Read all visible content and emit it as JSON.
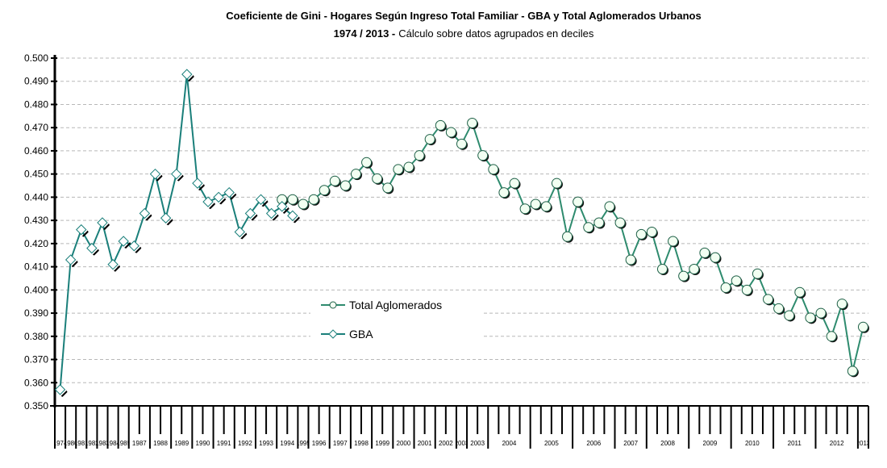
{
  "chart_data": {
    "type": "line",
    "title": "Coeficiente de Gini - Hogares Según Ingreso Total Familiar - GBA y Total Aglomerados Urbanos",
    "subtitle_bold": "1974 / 2013 -",
    "subtitle": "Cálculo sobre datos agrupados en deciles",
    "ylim": [
      0.35,
      0.5
    ],
    "yticks": [
      "0.350",
      "0.360",
      "0.370",
      "0.380",
      "0.390",
      "0.400",
      "0.410",
      "0.420",
      "0.430",
      "0.440",
      "0.450",
      "0.460",
      "0.470",
      "0.480",
      "0.490",
      "0.500"
    ],
    "grid": true,
    "legend_placement": "center",
    "groups": [
      {
        "year": "1974",
        "periods": [
          "Octubre"
        ]
      },
      {
        "year": "1980",
        "periods": [
          "Octubre"
        ]
      },
      {
        "year": "1981",
        "periods": [
          "Octubre"
        ]
      },
      {
        "year": "1982",
        "periods": [
          "Octubre"
        ]
      },
      {
        "year": "1983",
        "periods": [
          "Octubre"
        ]
      },
      {
        "year": "1984",
        "periods": [
          "Octubre"
        ]
      },
      {
        "year": "1985",
        "periods": [
          "Octubre"
        ]
      },
      {
        "year": "1987",
        "periods": [
          "Mayo",
          "Octubre"
        ]
      },
      {
        "year": "1988",
        "periods": [
          "Mayo",
          "Octubre"
        ]
      },
      {
        "year": "1989",
        "periods": [
          "Mayo",
          "Octubre"
        ]
      },
      {
        "year": "1990",
        "periods": [
          "Mayo",
          "Octubre"
        ]
      },
      {
        "year": "1991",
        "periods": [
          "Mayo",
          "Octubre"
        ]
      },
      {
        "year": "1992",
        "periods": [
          "Mayo",
          "Octubre"
        ]
      },
      {
        "year": "1993",
        "periods": [
          "Mayo",
          "Octubre"
        ]
      },
      {
        "year": "1994",
        "periods": [
          "Mayo",
          "Octubre"
        ]
      },
      {
        "year": "1995",
        "periods": [
          "Mayo"
        ]
      },
      {
        "year": "1996",
        "periods": [
          "Mayo",
          "Octubre"
        ]
      },
      {
        "year": "1997",
        "periods": [
          "Mayo",
          "Octubre"
        ]
      },
      {
        "year": "1998",
        "periods": [
          "Mayo",
          "Octubre"
        ]
      },
      {
        "year": "1999",
        "periods": [
          "Mayo",
          "Octubre"
        ]
      },
      {
        "year": "2000",
        "periods": [
          "Mayo",
          "Octubre"
        ]
      },
      {
        "year": "2001",
        "periods": [
          "Mayo",
          "Octubre"
        ]
      },
      {
        "year": "2002",
        "periods": [
          "Mayo",
          "Octubre"
        ]
      },
      {
        "year": "2003",
        "periods": [
          "Mayo"
        ]
      },
      {
        "year": "2003",
        "periods": [
          "III",
          "IV"
        ]
      },
      {
        "year": "2004",
        "periods": [
          "I",
          "II",
          "III",
          "IV"
        ]
      },
      {
        "year": "2005",
        "periods": [
          "I",
          "II",
          "III",
          "IV"
        ]
      },
      {
        "year": "2006",
        "periods": [
          "I",
          "II",
          "III",
          "IV"
        ]
      },
      {
        "year": "2007",
        "periods": [
          "I",
          "II",
          "IV"
        ]
      },
      {
        "year": "2008",
        "periods": [
          "I",
          "II",
          "III",
          "IV"
        ]
      },
      {
        "year": "2009",
        "periods": [
          "I",
          "II",
          "III",
          "IV"
        ]
      },
      {
        "year": "2010",
        "periods": [
          "I",
          "II",
          "III",
          "IV"
        ]
      },
      {
        "year": "2011",
        "periods": [
          "I",
          "II",
          "III",
          "IV"
        ]
      },
      {
        "year": "2012",
        "periods": [
          "I",
          "II",
          "III",
          "IV"
        ]
      },
      {
        "year": "2013",
        "periods": [
          "I"
        ]
      }
    ],
    "series": [
      {
        "name": "Total Aglomerados",
        "marker": "circle",
        "color": "#2e8b6e",
        "start_index": 21,
        "values": [
          0.439,
          0.439,
          0.437,
          0.439,
          0.443,
          0.447,
          0.445,
          0.45,
          0.455,
          0.448,
          0.444,
          0.452,
          0.453,
          0.458,
          0.465,
          0.471,
          0.468,
          0.463,
          0.472,
          0.458,
          0.452,
          0.442,
          0.446,
          0.435,
          0.437,
          0.436,
          0.446,
          0.423,
          0.438,
          0.427,
          0.429,
          0.436,
          0.429,
          0.413,
          0.424,
          0.425,
          0.409,
          0.421,
          0.406,
          0.409,
          0.416,
          0.414,
          0.401,
          0.404,
          0.4,
          0.407,
          0.396,
          0.392,
          0.389,
          0.399,
          0.388,
          0.39,
          0.38,
          0.394,
          0.365,
          0.384
        ]
      },
      {
        "name": "GBA",
        "marker": "diamond",
        "color": "#1a7f7a",
        "start_index": 0,
        "values": [
          0.357,
          0.413,
          0.426,
          0.418,
          0.429,
          0.411,
          0.421,
          0.419,
          0.433,
          0.45,
          0.431,
          0.45,
          0.493,
          0.446,
          0.438,
          0.44,
          0.442,
          0.425,
          0.433,
          0.439,
          0.433,
          0.436,
          0.432
        ]
      }
    ]
  }
}
